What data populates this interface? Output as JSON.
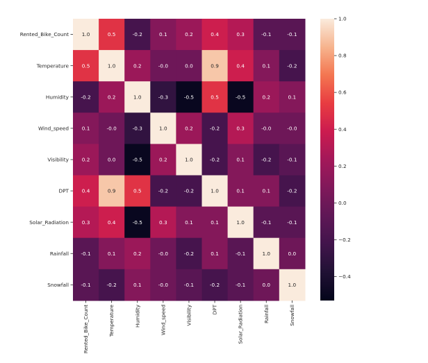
{
  "chart_data": {
    "type": "heatmap",
    "title": "",
    "row_labels": [
      "Rented_Bike_Count",
      "Temperature",
      "Humidity",
      "Wind_speed",
      "Visibility",
      "DPT",
      "Solar_Radiation",
      "Rainfall",
      "Snowfall"
    ],
    "col_labels": [
      "Rented_Bike_Count",
      "Temperature",
      "Humidity",
      "Wind_speed",
      "Visibility",
      "DPT",
      "Solar_Radiation",
      "Rainfall",
      "Snowfall"
    ],
    "values": [
      [
        1.0,
        0.5,
        -0.2,
        0.1,
        0.2,
        0.4,
        0.3,
        -0.1,
        -0.1
      ],
      [
        0.5,
        1.0,
        0.2,
        -0.0,
        0.0,
        0.9,
        0.4,
        0.1,
        -0.2
      ],
      [
        -0.2,
        0.2,
        1.0,
        -0.3,
        -0.5,
        0.5,
        -0.5,
        0.2,
        0.1
      ],
      [
        0.1,
        -0.0,
        -0.3,
        1.0,
        0.2,
        -0.2,
        0.3,
        -0.0,
        -0.0
      ],
      [
        0.2,
        0.0,
        -0.5,
        0.2,
        1.0,
        -0.2,
        0.1,
        -0.2,
        -0.1
      ],
      [
        0.4,
        0.9,
        0.5,
        -0.2,
        -0.2,
        1.0,
        0.1,
        0.1,
        -0.2
      ],
      [
        0.3,
        0.4,
        -0.5,
        0.3,
        0.1,
        0.1,
        1.0,
        -0.1,
        -0.1
      ],
      [
        -0.1,
        0.1,
        0.2,
        -0.0,
        -0.2,
        0.1,
        -0.1,
        1.0,
        0.0
      ],
      [
        -0.1,
        -0.2,
        0.1,
        -0.0,
        -0.1,
        -0.2,
        -0.1,
        0.0,
        1.0
      ]
    ],
    "annotations": [
      [
        "1.0",
        "0.5",
        "-0.2",
        "0.1",
        "0.2",
        "0.4",
        "0.3",
        "-0.1",
        "-0.1"
      ],
      [
        "0.5",
        "1.0",
        "0.2",
        "-0.0",
        "0.0",
        "0.9",
        "0.4",
        "0.1",
        "-0.2"
      ],
      [
        "-0.2",
        "0.2",
        "1.0",
        "-0.3",
        "-0.5",
        "0.5",
        "-0.5",
        "0.2",
        "0.1"
      ],
      [
        "0.1",
        "-0.0",
        "-0.3",
        "1.0",
        "0.2",
        "-0.2",
        "0.3",
        "-0.0",
        "-0.0"
      ],
      [
        "0.2",
        "0.0",
        "-0.5",
        "0.2",
        "1.0",
        "-0.2",
        "0.1",
        "-0.2",
        "-0.1"
      ],
      [
        "0.4",
        "0.9",
        "0.5",
        "-0.2",
        "-0.2",
        "1.0",
        "0.1",
        "0.1",
        "-0.2"
      ],
      [
        "0.3",
        "0.4",
        "-0.5",
        "0.3",
        "0.1",
        "0.1",
        "1.0",
        "-0.1",
        "-0.1"
      ],
      [
        "-0.1",
        "0.1",
        "0.2",
        "-0.0",
        "-0.2",
        "0.1",
        "-0.1",
        "1.0",
        "0.0"
      ],
      [
        "-0.1",
        "-0.2",
        "0.1",
        "-0.0",
        "-0.1",
        "-0.2",
        "-0.1",
        "0.0",
        "1.0"
      ]
    ],
    "colormap": "rocket",
    "colorbar": {
      "min": -0.53,
      "max": 1.0,
      "ticks": [
        1.0,
        0.8,
        0.6,
        0.4,
        0.2,
        0.0,
        -0.2,
        -0.4
      ],
      "tick_labels": [
        "1.0",
        "0.8",
        "0.6",
        "0.4",
        "0.2",
        "0.0",
        "−0.2",
        "−0.4"
      ]
    },
    "xlabel": "",
    "ylabel": "",
    "grid": false
  }
}
